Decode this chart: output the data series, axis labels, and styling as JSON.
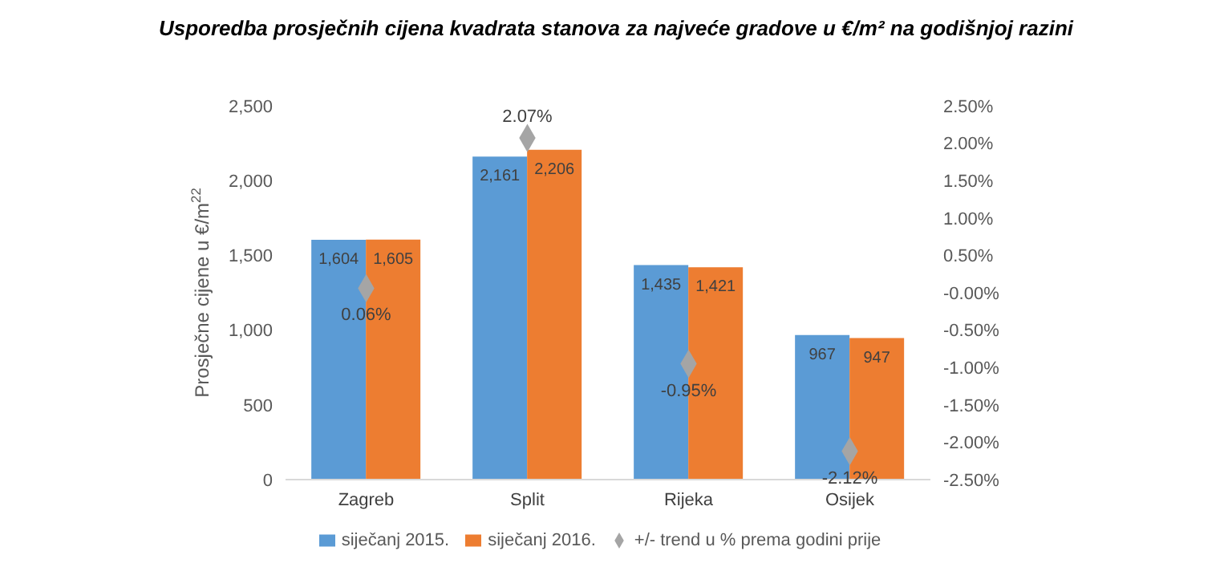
{
  "chart_data": {
    "type": "bar",
    "title": "Usporedba  prosječnih cijena kvadrata stanova za najveće gradove u €/m² na godišnjoj razini",
    "ylabel": "Prosječne cijene u €/m$^{22}$",
    "categories": [
      "Zagreb",
      "Split",
      "Rijeka",
      "Osijek"
    ],
    "series": [
      {
        "name": "siječanj 2015.",
        "color": "#5b9bd5",
        "values": [
          1604,
          2161,
          1435,
          967
        ],
        "value_labels": [
          "1,604",
          "2,161",
          "1,435",
          "967"
        ]
      },
      {
        "name": "siječanj 2016.",
        "color": "#ed7d31",
        "values": [
          1605,
          2206,
          1421,
          947
        ],
        "value_labels": [
          "1,605",
          "2,206",
          "1,421",
          "947"
        ]
      },
      {
        "name": "+/- trend u % prema godini prije",
        "type": "scatter",
        "axis": "y2",
        "marker": "diamond",
        "color": "#a5a5a5",
        "values": [
          0.06,
          2.07,
          -0.95,
          -2.12
        ],
        "value_labels": [
          "0.06%",
          "2.07%",
          "-0.95%",
          "-2.12%"
        ]
      }
    ],
    "ylim": [
      0,
      2500
    ],
    "yticks": [
      {
        "value": 0,
        "label": "0"
      },
      {
        "value": 500,
        "label": "500"
      },
      {
        "value": 1000,
        "label": "1,000"
      },
      {
        "value": 1500,
        "label": "1,500"
      },
      {
        "value": 2000,
        "label": "2,000"
      },
      {
        "value": 2500,
        "label": "2,500"
      }
    ],
    "y2lim": [
      -2.5,
      2.5
    ],
    "y2ticks": [
      {
        "value": 2.5,
        "label": "2.50%"
      },
      {
        "value": 2,
        "label": "2.00%"
      },
      {
        "value": 1.5,
        "label": "1.50%"
      },
      {
        "value": 1,
        "label": "1.00%"
      },
      {
        "value": 0.5,
        "label": "0.50%"
      },
      {
        "value": 0,
        "label": "-0.00%"
      },
      {
        "value": -0.5,
        "label": "-0.50%"
      },
      {
        "value": -1,
        "label": "-1.00%"
      },
      {
        "value": -1.5,
        "label": "-1.50%"
      },
      {
        "value": -2,
        "label": "-2.00%"
      },
      {
        "value": -2.5,
        "label": "-2.50%"
      }
    ],
    "grid": false,
    "legend": "bottom"
  }
}
